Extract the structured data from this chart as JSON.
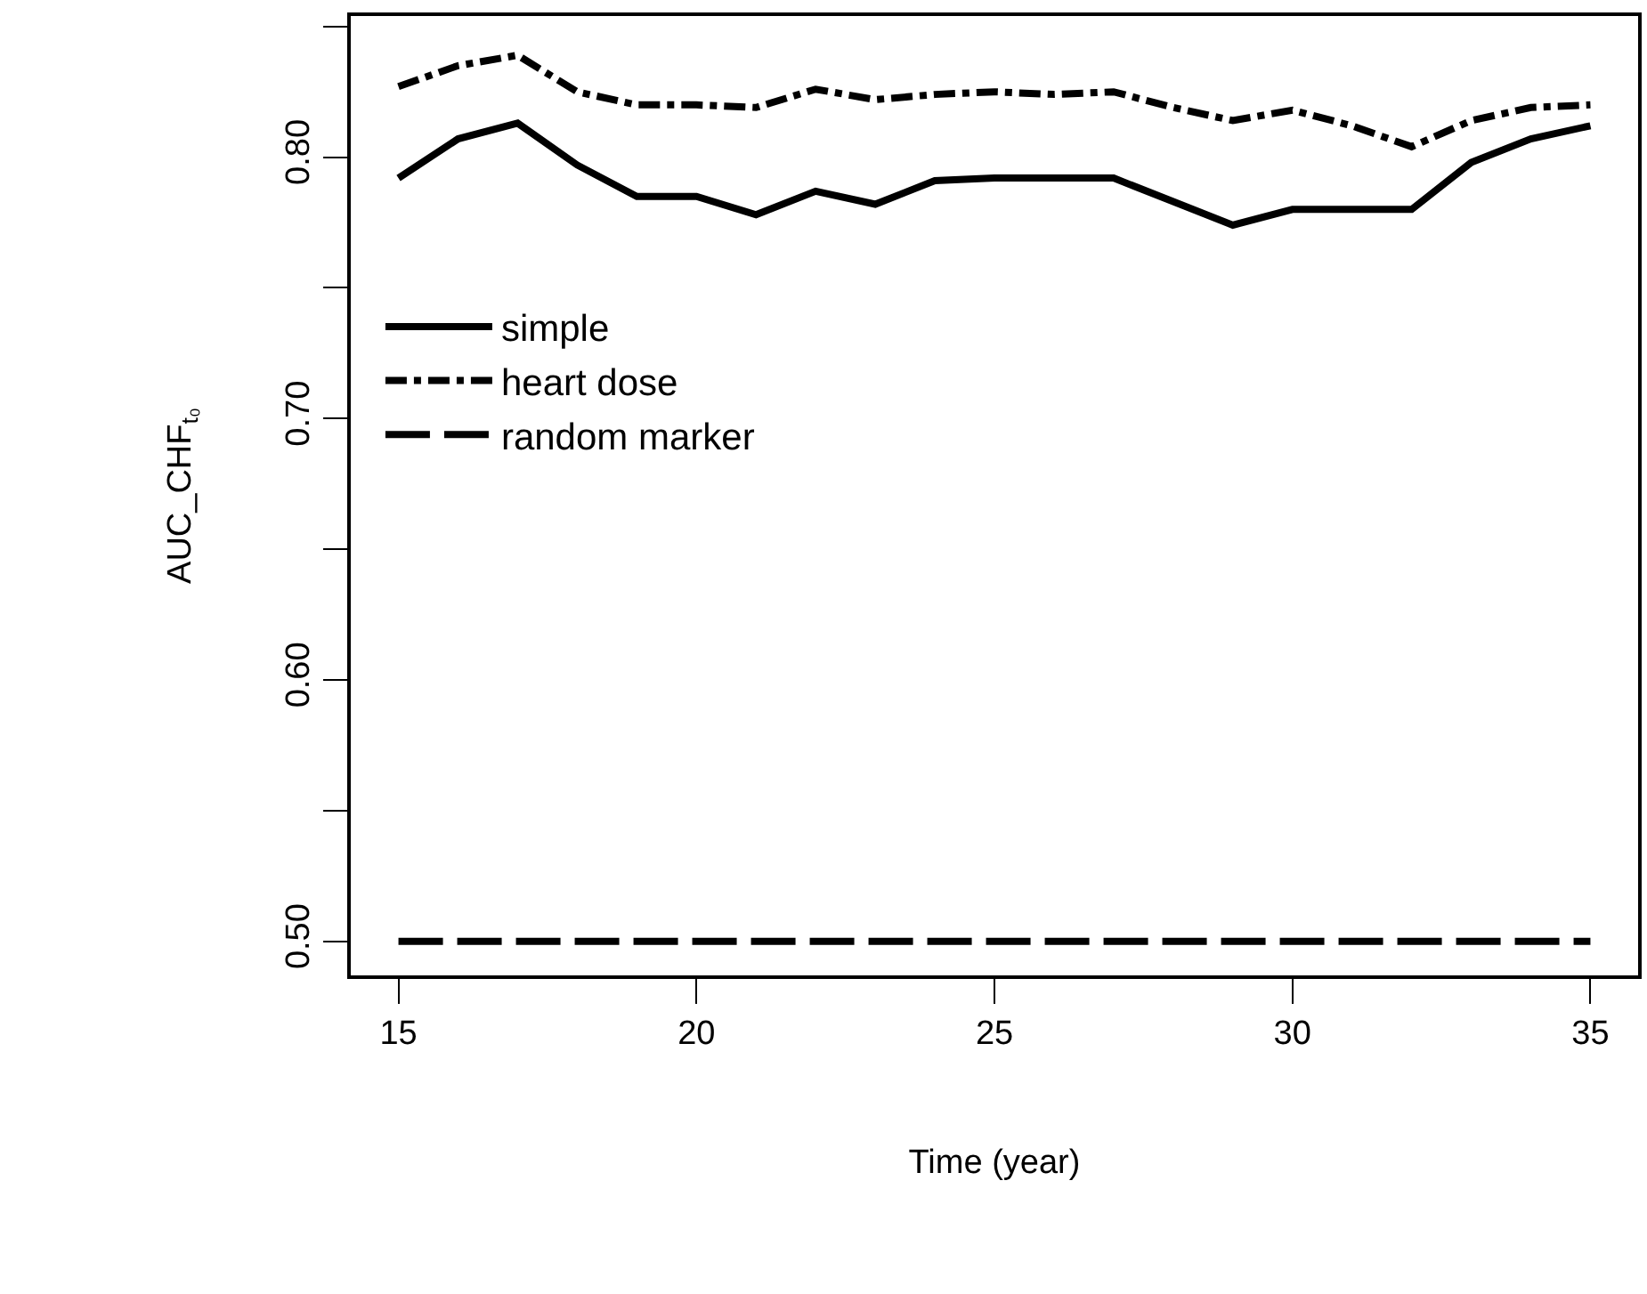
{
  "chart_data": {
    "type": "line",
    "xlabel": "Time (year)",
    "ylabel": "AUC_CHF$_{t₀}$",
    "x": [
      15,
      16,
      17,
      18,
      19,
      20,
      21,
      22,
      23,
      24,
      25,
      26,
      27,
      28,
      29,
      30,
      31,
      32,
      33,
      34,
      35
    ],
    "series": [
      {
        "name": "simple",
        "color": "#000000",
        "line_style": "solid",
        "values": [
          0.792,
          0.807,
          0.813,
          0.797,
          0.785,
          0.785,
          0.778,
          0.787,
          0.782,
          0.791,
          0.792,
          0.792,
          0.792,
          0.783,
          0.774,
          0.78,
          0.78,
          0.78,
          0.798,
          0.807,
          0.812
        ]
      },
      {
        "name": "heart dose",
        "color": "#000000",
        "line_style": "dashdot",
        "values": [
          0.827,
          0.835,
          0.839,
          0.825,
          0.82,
          0.82,
          0.819,
          0.826,
          0.822,
          0.824,
          0.825,
          0.824,
          0.825,
          0.819,
          0.814,
          0.818,
          0.812,
          0.804,
          0.814,
          0.819,
          0.82
        ]
      },
      {
        "name": "random marker",
        "color": "#000000",
        "line_style": "dashed",
        "values": [
          0.5,
          0.5,
          0.5,
          0.5,
          0.5,
          0.5,
          0.5,
          0.5,
          0.5,
          0.5,
          0.5,
          0.5,
          0.5,
          0.5,
          0.5,
          0.5,
          0.5,
          0.5,
          0.5,
          0.5,
          0.5
        ]
      }
    ],
    "xlim": [
      14.2,
      35.8
    ],
    "xticks": [
      15,
      20,
      25,
      30,
      35
    ],
    "ylim": [
      0.487,
      0.854
    ],
    "yticks": [
      {
        "value": 0.5,
        "label": "0.50"
      },
      {
        "value": 0.55,
        "label": null
      },
      {
        "value": 0.6,
        "label": "0.60"
      },
      {
        "value": 0.65,
        "label": null
      },
      {
        "value": 0.7,
        "label": "0.70"
      },
      {
        "value": 0.75,
        "label": null
      },
      {
        "value": 0.8,
        "label": "0.80"
      },
      {
        "value": 0.85,
        "label": null
      }
    ],
    "legend": "left",
    "marker": "none"
  }
}
